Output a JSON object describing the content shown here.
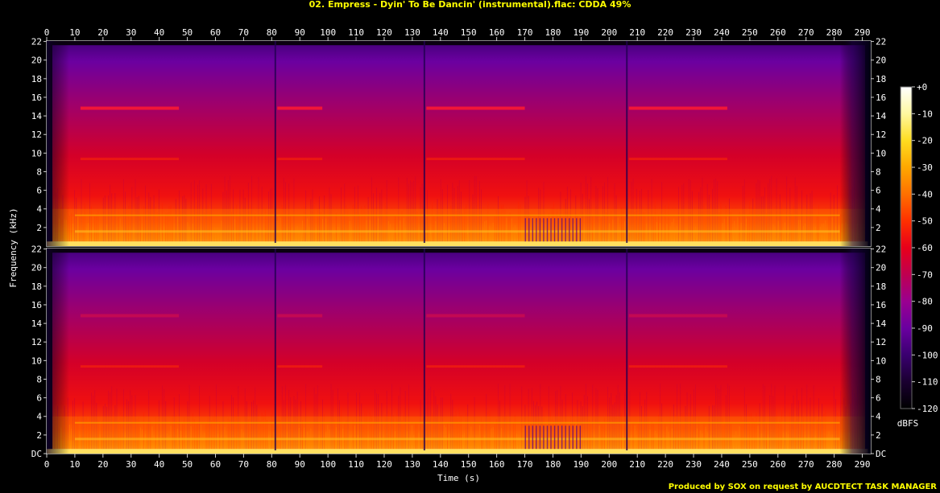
{
  "window": {
    "title": "02. Empress - Dyin' To Be Dancin' (instrumental).flac: CDDA 49%",
    "credit": "Produced by SOX on request by AUCDTECT TASK MANAGER"
  },
  "chart_data": {
    "type": "heatmap",
    "title": "02. Empress - Dyin' To Be Dancin' (instrumental).flac: CDDA 49%",
    "xlabel": "Time (s)",
    "ylabel": "Frequency (kHz)",
    "xlim": [
      0,
      293
    ],
    "ylim": [
      0,
      22.05
    ],
    "x_ticks": [
      0,
      10,
      20,
      30,
      40,
      50,
      60,
      70,
      80,
      90,
      100,
      110,
      120,
      130,
      140,
      150,
      160,
      170,
      180,
      190,
      200,
      210,
      220,
      230,
      240,
      250,
      260,
      270,
      280,
      290
    ],
    "y_ticks_top": [
      "2",
      "4",
      "6",
      "8",
      "10",
      "12",
      "14",
      "16",
      "18",
      "20",
      "22"
    ],
    "y_ticks_bottom": [
      "DC",
      "2",
      "4",
      "6",
      "8",
      "10",
      "12",
      "14",
      "16",
      "18",
      "20",
      "22"
    ],
    "channels": 2,
    "colorbar": {
      "label": "dBFS",
      "ticks": [
        "+0",
        "-10",
        "-20",
        "-30",
        "-40",
        "-50",
        "-60",
        "-70",
        "-80",
        "-90",
        "-100",
        "-110",
        "-120"
      ],
      "range": [
        -120,
        0
      ],
      "colors": [
        "#000000",
        "#1a0030",
        "#3a0070",
        "#6a00a0",
        "#9a0090",
        "#c00050",
        "#e8001a",
        "#ff3000",
        "#ff7000",
        "#ffa800",
        "#ffdc20",
        "#fff8a0",
        "#ffffff"
      ]
    },
    "sections_kHz_band_15": [
      [
        12,
        47
      ],
      [
        82,
        98
      ],
      [
        135,
        170
      ],
      [
        207,
        242
      ]
    ],
    "quiet_drops_s": [
      81,
      134,
      206
    ],
    "dropout_region_s": [
      170,
      190
    ],
    "fade_out_start_s": 282,
    "legend_position": "right"
  }
}
